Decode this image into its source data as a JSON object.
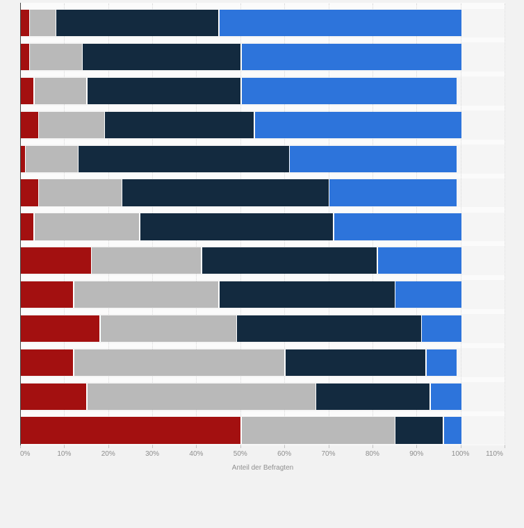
{
  "chart_data": {
    "type": "bar",
    "orientation": "horizontal-stacked",
    "title": "",
    "xlabel": "Anteil der Befragten",
    "ylabel": "",
    "xlim": [
      0,
      110
    ],
    "x_tick_labels": [
      "0%",
      "10%",
      "20%",
      "30%",
      "40%",
      "50%",
      "60%",
      "70%",
      "80%",
      "90%",
      "100%",
      "110%"
    ],
    "grid": "dotted-vertical",
    "legend": "none-visible",
    "n_rows": 13,
    "series": [
      {
        "name": "dark_red",
        "color": "#a31010",
        "values": [
          2,
          2,
          3,
          4,
          1,
          4,
          3,
          16,
          12,
          18,
          12,
          15,
          50
        ]
      },
      {
        "name": "gray",
        "color": "#b9b9b9",
        "values": [
          6,
          12,
          12,
          15,
          12,
          19,
          24,
          25,
          33,
          31,
          48,
          52,
          35
        ]
      },
      {
        "name": "dark_navy",
        "color": "#132a3f",
        "values": [
          37,
          36,
          35,
          34,
          48,
          47,
          44,
          40,
          40,
          42,
          32,
          26,
          11
        ]
      },
      {
        "name": "blue",
        "color": "#2d74db",
        "values": [
          55,
          50,
          49,
          47,
          38,
          29,
          29,
          19,
          15,
          9,
          7,
          7,
          4
        ]
      }
    ]
  },
  "palette": {
    "page_bg": "#f2f2f2",
    "plot_bg": "#fbfbfb",
    "row_band": "#f5f5f5",
    "gridline": "#d7d7d8",
    "axis_line": "#434343",
    "tick": "#c2c2c2",
    "tick_label": "#8c8c8c",
    "axis_title": "#8f8f8f"
  }
}
